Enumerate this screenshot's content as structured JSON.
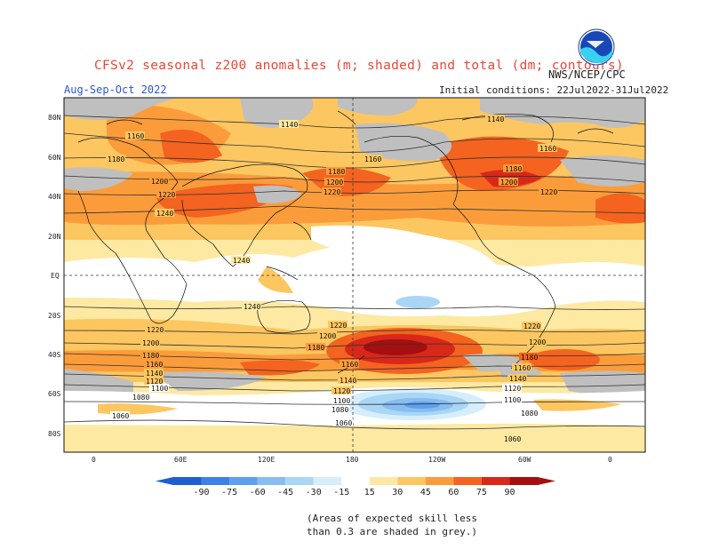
{
  "header": {
    "title": "CFSv2 seasonal z200 anomalies (m; shaded) and total (dm; contours)",
    "agency": "NWS/NCEP/CPC",
    "period": "Aug-Sep-Oct 2022",
    "initial_conditions": "Initial conditions: 22Jul2022-31Jul2022",
    "logo_text": "NOAA"
  },
  "map": {
    "lat_labels": [
      "80N",
      "60N",
      "40N",
      "20N",
      "EQ",
      "20S",
      "40S",
      "60S",
      "80S"
    ],
    "lon_labels": [
      "0",
      "60E",
      "120E",
      "180",
      "120W",
      "60W",
      "0"
    ],
    "contour_labels": [
      "1140",
      "1160",
      "1180",
      "1200",
      "1220",
      "1240",
      "1120",
      "1100",
      "1080",
      "1060"
    ]
  },
  "colorbar": {
    "ticks": [
      "-90",
      "-75",
      "-60",
      "-45",
      "-30",
      "-15",
      "15",
      "30",
      "45",
      "60",
      "75",
      "90"
    ],
    "colors": [
      "#1e5fd0",
      "#3c83e6",
      "#5ea0ee",
      "#86bdf2",
      "#aad6f6",
      "#d6eefb",
      "#ffffff",
      "#fde9a2",
      "#fcc661",
      "#fb9c3b",
      "#f4631f",
      "#d8281a",
      "#a50f0f"
    ]
  },
  "note": {
    "line1": "(Areas of expected skill less",
    "line2": "than 0.3 are shaded in grey.)"
  }
}
